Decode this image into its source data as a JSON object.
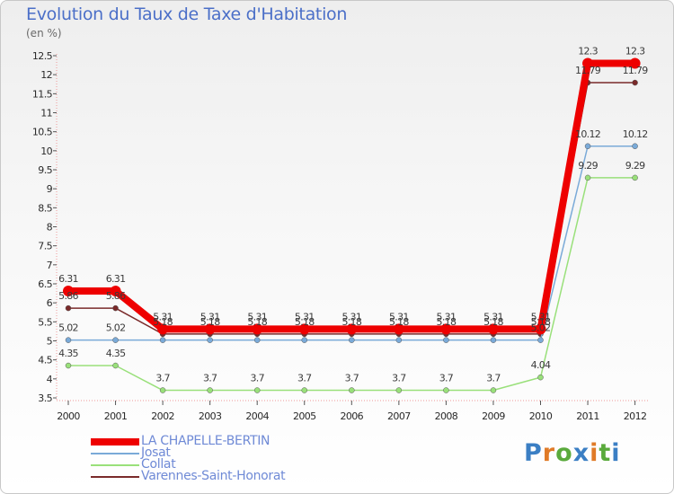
{
  "title": "Evolution du Taux de Taxe d'Habitation",
  "unit": "(en %)",
  "logo": "Proxiti",
  "chart_data": {
    "type": "line",
    "x": [
      "2000",
      "2001",
      "2002",
      "2003",
      "2004",
      "2005",
      "2006",
      "2007",
      "2008",
      "2009",
      "2010",
      "2011",
      "2012"
    ],
    "ylim": [
      3.5,
      12.5
    ],
    "yticks": [
      "3.5",
      "4",
      "4.5",
      "5",
      "5.5",
      "6",
      "6.5",
      "7",
      "7.5",
      "8",
      "8.5",
      "9",
      "9.5",
      "10",
      "10.5",
      "11",
      "11.5",
      "12",
      "12.5"
    ],
    "series": [
      {
        "name": "Varennes-Saint-Honorat",
        "color": "#7a2a2a",
        "values": [
          5.86,
          5.86,
          5.18,
          5.18,
          5.18,
          5.18,
          5.18,
          5.18,
          5.18,
          5.18,
          5.18,
          11.79,
          11.79
        ],
        "labels": [
          "5.86",
          "5.86",
          "5.18",
          "5.18",
          "5.18",
          "5.18",
          "5.18",
          "5.18",
          "5.18",
          "5.18",
          "5.18",
          "11.79",
          "11.79"
        ]
      },
      {
        "name": "Collat",
        "color": "#99e07a",
        "values": [
          4.35,
          4.35,
          3.7,
          3.7,
          3.7,
          3.7,
          3.7,
          3.7,
          3.7,
          3.7,
          4.04,
          9.29,
          9.29
        ],
        "labels": [
          "4.35",
          "4.35",
          "3.7",
          "3.7",
          "3.7",
          "3.7",
          "3.7",
          "3.7",
          "3.7",
          "3.7",
          "4.04",
          "9.29",
          "9.29"
        ]
      },
      {
        "name": "Josat",
        "color": "#7aaad8",
        "values": [
          5.02,
          5.02,
          5.02,
          5.02,
          5.02,
          5.02,
          5.02,
          5.02,
          5.02,
          5.02,
          5.02,
          10.12,
          10.12
        ],
        "labels": [
          "5.02",
          "5.02",
          "",
          "",
          "",
          "",
          "",
          "",
          "",
          "",
          "5.02",
          "10.12",
          "10.12"
        ]
      },
      {
        "name": "LA CHAPELLE-BERTIN",
        "color": "#ee0000",
        "values": [
          6.31,
          6.31,
          5.31,
          5.31,
          5.31,
          5.31,
          5.31,
          5.31,
          5.31,
          5.31,
          5.31,
          12.3,
          12.3
        ],
        "labels": [
          "6.31",
          "6.31",
          "5.31",
          "5.31",
          "5.31",
          "5.31",
          "5.31",
          "5.31",
          "5.31",
          "5.31",
          "5.31",
          "12.3",
          "12.3"
        ]
      }
    ],
    "legend": [
      {
        "name": "LA CHAPELLE-BERTIN",
        "color": "#ee0000"
      },
      {
        "name": "Josat",
        "color": "#7aaad8"
      },
      {
        "name": "Collat",
        "color": "#99e07a"
      },
      {
        "name": "Varennes-Saint-Honorat",
        "color": "#7a2a2a"
      }
    ],
    "legend_position": "bottom-left"
  }
}
